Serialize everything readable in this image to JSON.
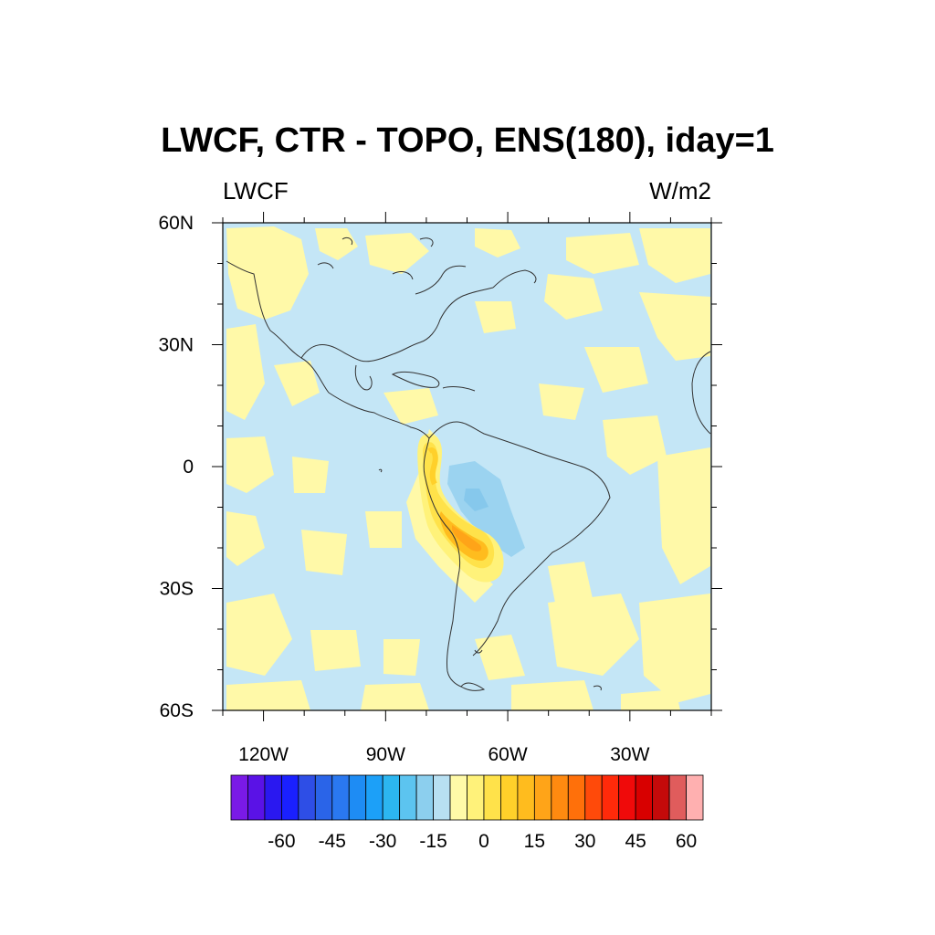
{
  "title": "LWCF, CTR - TOPO, ENS(180), iday=1",
  "left_label": "LWCF",
  "right_label": "W/m2",
  "map": {
    "lat_range": [
      -60,
      60
    ],
    "lon_range": [
      -130,
      -10
    ],
    "lat_ticks": [
      {
        "value": 60,
        "label": "60N"
      },
      {
        "value": 30,
        "label": "30N"
      },
      {
        "value": 0,
        "label": "0"
      },
      {
        "value": -30,
        "label": "30S"
      },
      {
        "value": -60,
        "label": "60S"
      }
    ],
    "lon_ticks": [
      {
        "value": -120,
        "label": "120W"
      },
      {
        "value": -90,
        "label": "90W"
      },
      {
        "value": -60,
        "label": "60W"
      },
      {
        "value": -30,
        "label": "30W"
      }
    ],
    "colors": {
      "background_negative": "#c4e6f6",
      "small_positive": "#fff9a8",
      "moderate_negative": "#9bd3f0"
    }
  },
  "colorbar": {
    "colors": [
      "#7a1ae6",
      "#5a12e6",
      "#2a18f0",
      "#1a20ff",
      "#2e4ee6",
      "#2a64e8",
      "#2a78f0",
      "#1e8cf4",
      "#1ca0f8",
      "#2cb6f0",
      "#5cc4f0",
      "#8ccfee",
      "#b8e0f2",
      "#fffaa8",
      "#fff27a",
      "#ffe24a",
      "#ffd02a",
      "#ffbc1e",
      "#ffa418",
      "#ff8a10",
      "#ff700a",
      "#ff4a0a",
      "#ff2a0a",
      "#f00a0a",
      "#d80000",
      "#c40a0a",
      "#e05c5c",
      "#ffb0b0"
    ],
    "labels": [
      "-60",
      "-45",
      "-30",
      "-15",
      "0",
      "15",
      "30",
      "45",
      "60"
    ],
    "label_boundaries": [
      3,
      6,
      9,
      12,
      15,
      18,
      21,
      24,
      27
    ]
  }
}
